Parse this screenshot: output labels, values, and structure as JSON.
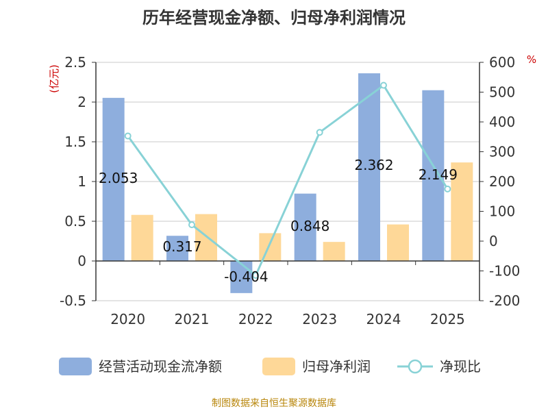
{
  "chart_data": {
    "type": "bar",
    "title": "历年经营现金净额、归母净利润情况",
    "categories": [
      "2020",
      "2021",
      "2022",
      "2023",
      "2024",
      "2025"
    ],
    "series": [
      {
        "name": "经营活动现金流净额",
        "type": "bar",
        "axis": "left",
        "color": "#8eaedd",
        "values": [
          2.053,
          0.317,
          -0.404,
          0.848,
          2.362,
          2.149
        ]
      },
      {
        "name": "归母净利润",
        "type": "bar",
        "axis": "left",
        "color": "#fed898",
        "values": [
          0.58,
          0.59,
          0.35,
          0.24,
          0.46,
          1.24
        ]
      },
      {
        "name": "净现比",
        "type": "line",
        "axis": "right",
        "color": "#88d2d6",
        "values": [
          353,
          55,
          -115,
          365,
          523,
          175
        ]
      }
    ],
    "left_axis": {
      "unit": "(亿元)",
      "ylim": [
        -0.5,
        2.5
      ],
      "ticks": [
        -0.5,
        0,
        0.5,
        1,
        1.5,
        2,
        2.5
      ],
      "tick_labels": [
        "-0.5",
        "0",
        "0.5",
        "1",
        "1.5",
        "2",
        "2.5"
      ]
    },
    "right_axis": {
      "unit": "%",
      "ylim": [
        -200,
        600
      ],
      "ticks": [
        -200,
        -100,
        0,
        100,
        200,
        300,
        400,
        500,
        600
      ],
      "tick_labels": [
        "-200",
        "-100",
        "0",
        "100",
        "200",
        "300",
        "400",
        "500",
        "600"
      ]
    },
    "data_labels": [
      "2.053",
      "0.317",
      "-0.404",
      "0.848",
      "2.362",
      "2.149"
    ],
    "grid": true,
    "legend_position": "bottom"
  },
  "source_text": "制图数据来自恒生聚源数据库"
}
